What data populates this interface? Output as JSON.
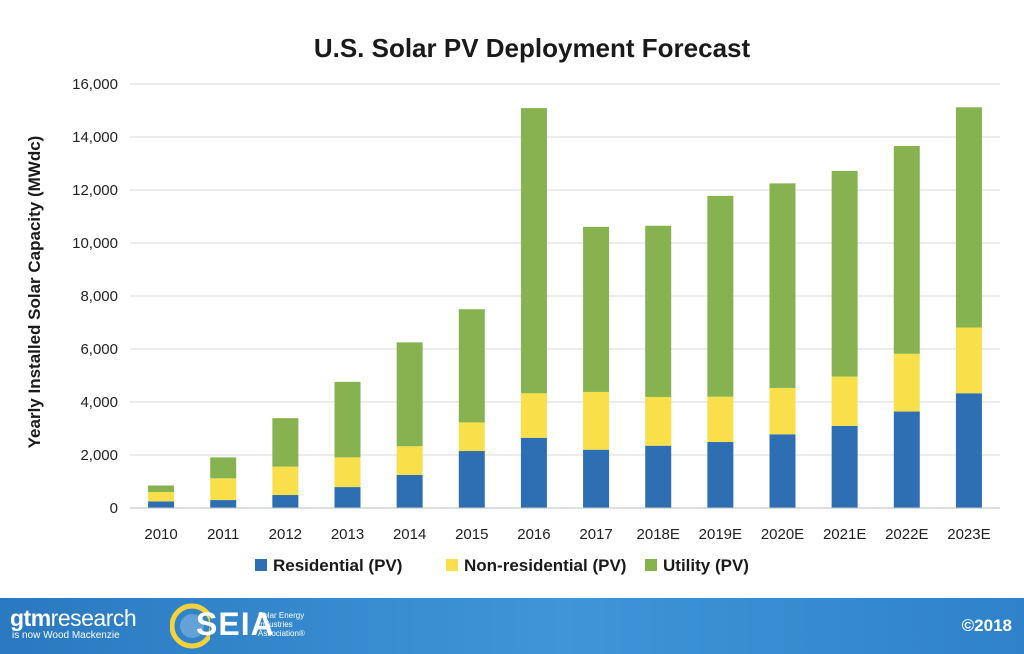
{
  "chart_data": {
    "type": "bar",
    "stacked": true,
    "title": "U.S. Solar PV Deployment Forecast",
    "xlabel": "",
    "ylabel": "Yearly Installed Solar Capacity (MWdc)",
    "ylim": [
      0,
      16000
    ],
    "yticks": [
      0,
      2000,
      4000,
      6000,
      8000,
      10000,
      12000,
      14000,
      16000
    ],
    "ytick_labels": [
      "0",
      "2,000",
      "4,000",
      "6,000",
      "8,000",
      "10,000",
      "12,000",
      "14,000",
      "16,000"
    ],
    "grid": true,
    "legend_position": "bottom",
    "categories": [
      "2010",
      "2011",
      "2012",
      "2013",
      "2014",
      "2015",
      "2016",
      "2017",
      "2018E",
      "2019E",
      "2020E",
      "2021E",
      "2022E",
      "2023E"
    ],
    "series": [
      {
        "name": "Residential (PV)",
        "color": "#2e6fb4",
        "values": [
          250,
          300,
          490,
          790,
          1250,
          2150,
          2650,
          2200,
          2350,
          2490,
          2780,
          3100,
          3640,
          4330
        ]
      },
      {
        "name": "Non-residential (PV)",
        "color": "#f9e04b",
        "values": [
          350,
          820,
          1070,
          1120,
          1080,
          1080,
          1680,
          2180,
          1840,
          1710,
          1750,
          1860,
          2180,
          2480
        ]
      },
      {
        "name": "Utility (PV)",
        "color": "#86b24f",
        "values": [
          250,
          790,
          1830,
          2850,
          3920,
          4270,
          10760,
          6230,
          6460,
          7580,
          7720,
          7760,
          7840,
          8310
        ]
      }
    ]
  },
  "footer": {
    "brand_main": "gtm",
    "brand_rest": "research",
    "brand_sub": "is now Wood Mackenzie",
    "seia": "SEIA",
    "seia_tagline": "Solar Energy Industries Association®",
    "copyright": "©2018"
  }
}
